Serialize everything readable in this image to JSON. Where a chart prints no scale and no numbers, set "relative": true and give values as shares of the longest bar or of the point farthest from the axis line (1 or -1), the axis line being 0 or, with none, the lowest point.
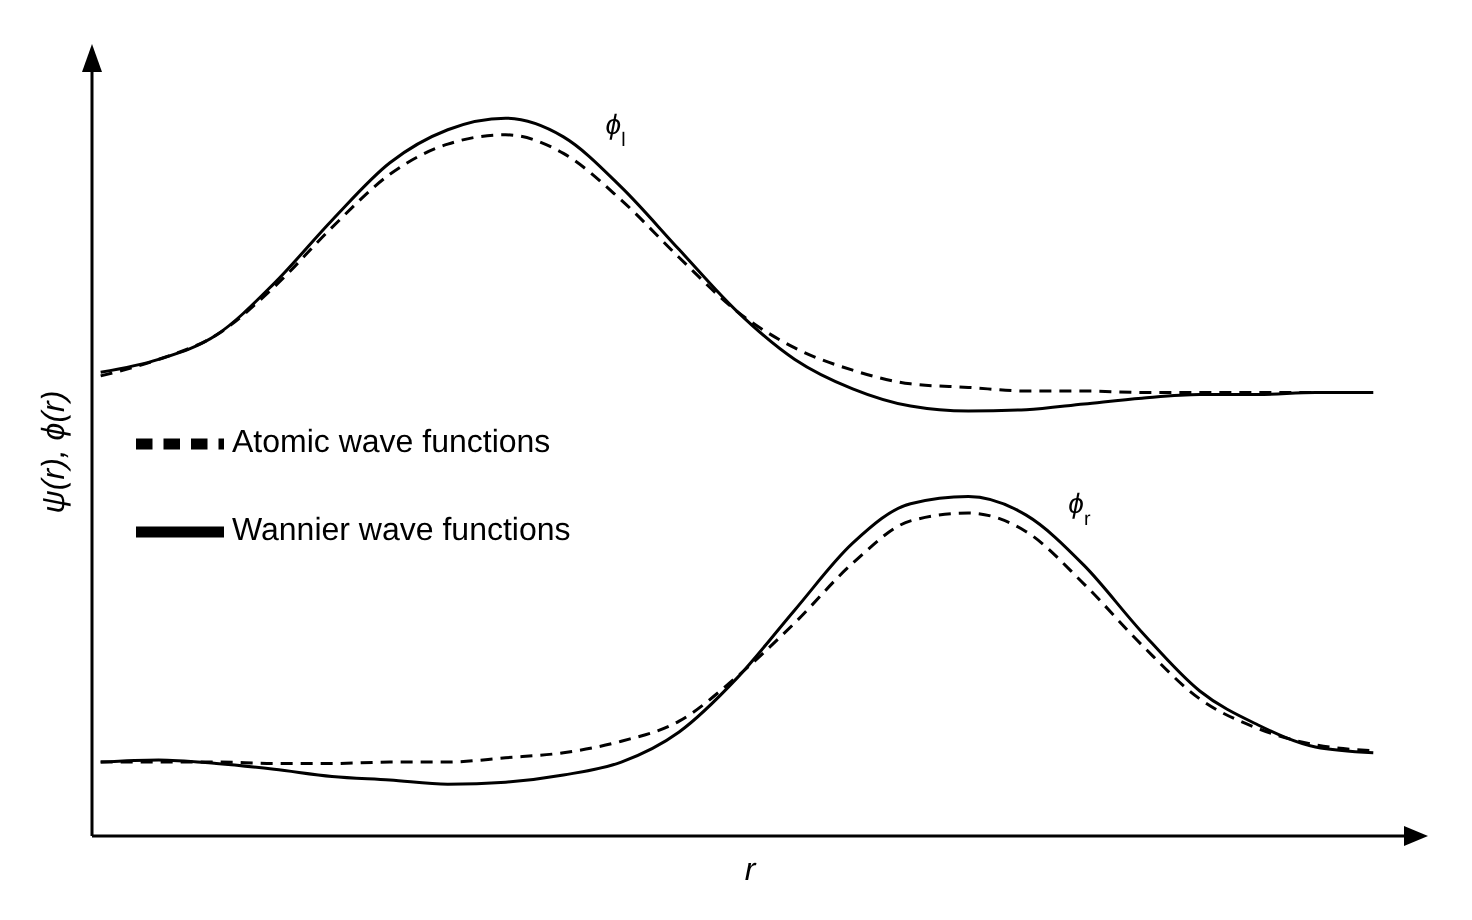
{
  "chart_data": {
    "type": "line",
    "relative": true,
    "xlabel": "r",
    "ylabel": "ψ(r), ϕ(r)",
    "legend": "left",
    "categories": [
      null,
      null,
      null,
      null,
      null,
      null,
      null,
      null,
      null,
      null,
      null,
      null,
      null,
      null,
      null,
      null,
      null,
      null,
      null,
      null,
      null,
      null,
      null
    ],
    "series": [
      {
        "name": "Wannier wave functions",
        "color": "#000000",
        "line_style": "solid",
        "values": [
          0.646,
          0.664,
          0.698,
          0.77,
          0.858,
          0.938,
          0.984,
          1,
          0.974,
          0.904,
          0.817,
          0.731,
          0.664,
          0.623,
          0.599,
          0.592,
          0.594,
          0.602,
          0.61,
          0.615,
          0.615,
          0.618,
          0.618
        ]
      },
      {
        "name": "Atomic wave functions",
        "color": "#000000",
        "line_style": "dashed",
        "values": [
          0.641,
          0.664,
          0.698,
          0.765,
          0.848,
          0.922,
          0.964,
          0.977,
          0.951,
          0.886,
          0.806,
          0.731,
          0.68,
          0.649,
          0.63,
          0.625,
          0.62,
          0.62,
          0.618,
          0.618,
          0.618,
          0.618,
          0.618
        ]
      },
      {
        "color": "#000000",
        "line_style": "solid",
        "values": [
          0.103,
          0.106,
          0.101,
          0.093,
          0.083,
          0.078,
          0.072,
          0.075,
          0.085,
          0.103,
          0.145,
          0.22,
          0.315,
          0.408,
          0.463,
          0.473,
          0.447,
          0.377,
          0.284,
          0.202,
          0.155,
          0.124,
          0.116
        ]
      },
      {
        "color": "#000000",
        "line_style": "dashed",
        "values": [
          0.103,
          0.103,
          0.103,
          0.101,
          0.101,
          0.103,
          0.103,
          0.109,
          0.116,
          0.132,
          0.16,
          0.222,
          0.297,
          0.38,
          0.439,
          0.45,
          0.424,
          0.351,
          0.266,
          0.191,
          0.15,
          0.127,
          0.119
        ]
      }
    ],
    "annotations": [
      "ϕ$_{l}$",
      "ϕ$_{r}$"
    ]
  }
}
